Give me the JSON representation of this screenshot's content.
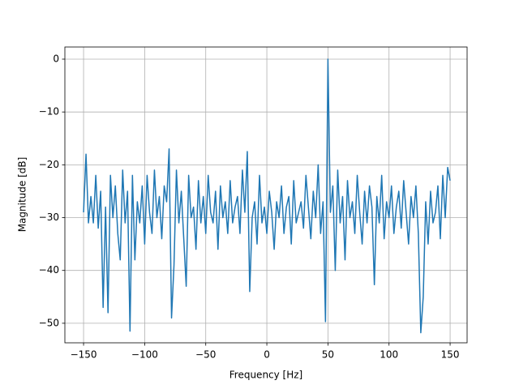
{
  "chart_data": {
    "type": "line",
    "xlabel": "Frequency [Hz]",
    "ylabel": "Magnitude [dB]",
    "x": [
      -150,
      -148,
      -146,
      -144,
      -142,
      -140,
      -138,
      -136,
      -134,
      -132,
      -130,
      -128,
      -126,
      -124,
      -122,
      -120,
      -118,
      -116,
      -114,
      -112,
      -110,
      -108,
      -106,
      -104,
      -102,
      -100,
      -98,
      -96,
      -94,
      -92,
      -90,
      -88,
      -86,
      -84,
      -82,
      -80,
      -78,
      -76,
      -74,
      -72,
      -70,
      -68,
      -66,
      -64,
      -62,
      -60,
      -58,
      -56,
      -54,
      -52,
      -50,
      -48,
      -46,
      -44,
      -42,
      -40,
      -38,
      -36,
      -34,
      -32,
      -30,
      -28,
      -26,
      -24,
      -22,
      -20,
      -18,
      -16,
      -14,
      -12,
      -10,
      -8,
      -6,
      -4,
      -2,
      0,
      2,
      4,
      6,
      8,
      10,
      12,
      14,
      16,
      18,
      20,
      22,
      24,
      26,
      28,
      30,
      32,
      34,
      36,
      38,
      40,
      42,
      44,
      46,
      48,
      50,
      52,
      54,
      56,
      58,
      60,
      62,
      64,
      66,
      68,
      70,
      72,
      74,
      76,
      78,
      80,
      82,
      84,
      86,
      88,
      90,
      92,
      94,
      96,
      98,
      100,
      102,
      104,
      106,
      108,
      110,
      112,
      114,
      116,
      118,
      120,
      122,
      124,
      126,
      128,
      130,
      132,
      134,
      136,
      138,
      140,
      142,
      144,
      146,
      148,
      150
    ],
    "series": [
      {
        "color": "#1f77b4",
        "values": [
          -29,
          -18,
          -31,
          -26,
          -31,
          -22,
          -32,
          -25,
          -47,
          -28,
          -48,
          -22,
          -30,
          -24,
          -33,
          -38,
          -21,
          -31,
          -25,
          -51.5,
          -22,
          -38,
          -27,
          -31,
          -24,
          -35,
          -22,
          -29,
          -33,
          -21,
          -30,
          -26,
          -34,
          -24,
          -27,
          -17,
          -49,
          -39,
          -21,
          -31,
          -25,
          -34,
          -43,
          -22,
          -30,
          -28,
          -36,
          -23,
          -31,
          -26,
          -33,
          -22,
          -29,
          -31,
          -25,
          -36,
          -24,
          -30,
          -27,
          -33,
          -23,
          -31,
          -28,
          -26,
          -33,
          -21,
          -29,
          -17.5,
          -44,
          -30,
          -27,
          -35,
          -22,
          -31,
          -28,
          -33,
          -25,
          -29,
          -36,
          -27,
          -30,
          -24,
          -33,
          -28,
          -26,
          -35,
          -23,
          -31,
          -29,
          -27,
          -32,
          -22,
          -28,
          -34,
          -25,
          -30,
          -20,
          -33,
          -27,
          -49.7,
          0,
          -29,
          -24,
          -40,
          -21,
          -31,
          -26,
          -38,
          -23,
          -30,
          -27,
          -33,
          -22,
          -29,
          -35,
          -25,
          -31,
          -24,
          -28,
          -42.7,
          -26,
          -31,
          -22,
          -34,
          -27,
          -30,
          -24,
          -33,
          -28,
          -25,
          -32,
          -23,
          -29,
          -35,
          -26,
          -30,
          -24,
          -33,
          -51.8,
          -45,
          -27,
          -35,
          -25,
          -31,
          -29,
          -24,
          -34,
          -22,
          -30,
          -20.5,
          -23
        ]
      }
    ],
    "xlim": [
      -165.3,
      163.9
    ],
    "ylim": [
      -53.7,
      2.3
    ],
    "xticks": [
      {
        "value": -150,
        "label": "−150"
      },
      {
        "value": -100,
        "label": "−100"
      },
      {
        "value": -50,
        "label": "−50"
      },
      0,
      50,
      100,
      150
    ],
    "yticks": [
      0,
      {
        "value": -10,
        "label": "−10"
      },
      {
        "value": -20,
        "label": "−20"
      },
      {
        "value": -30,
        "label": "−30"
      },
      {
        "value": -40,
        "label": "−40"
      },
      {
        "value": -50,
        "label": "−50"
      }
    ],
    "grid": true
  }
}
